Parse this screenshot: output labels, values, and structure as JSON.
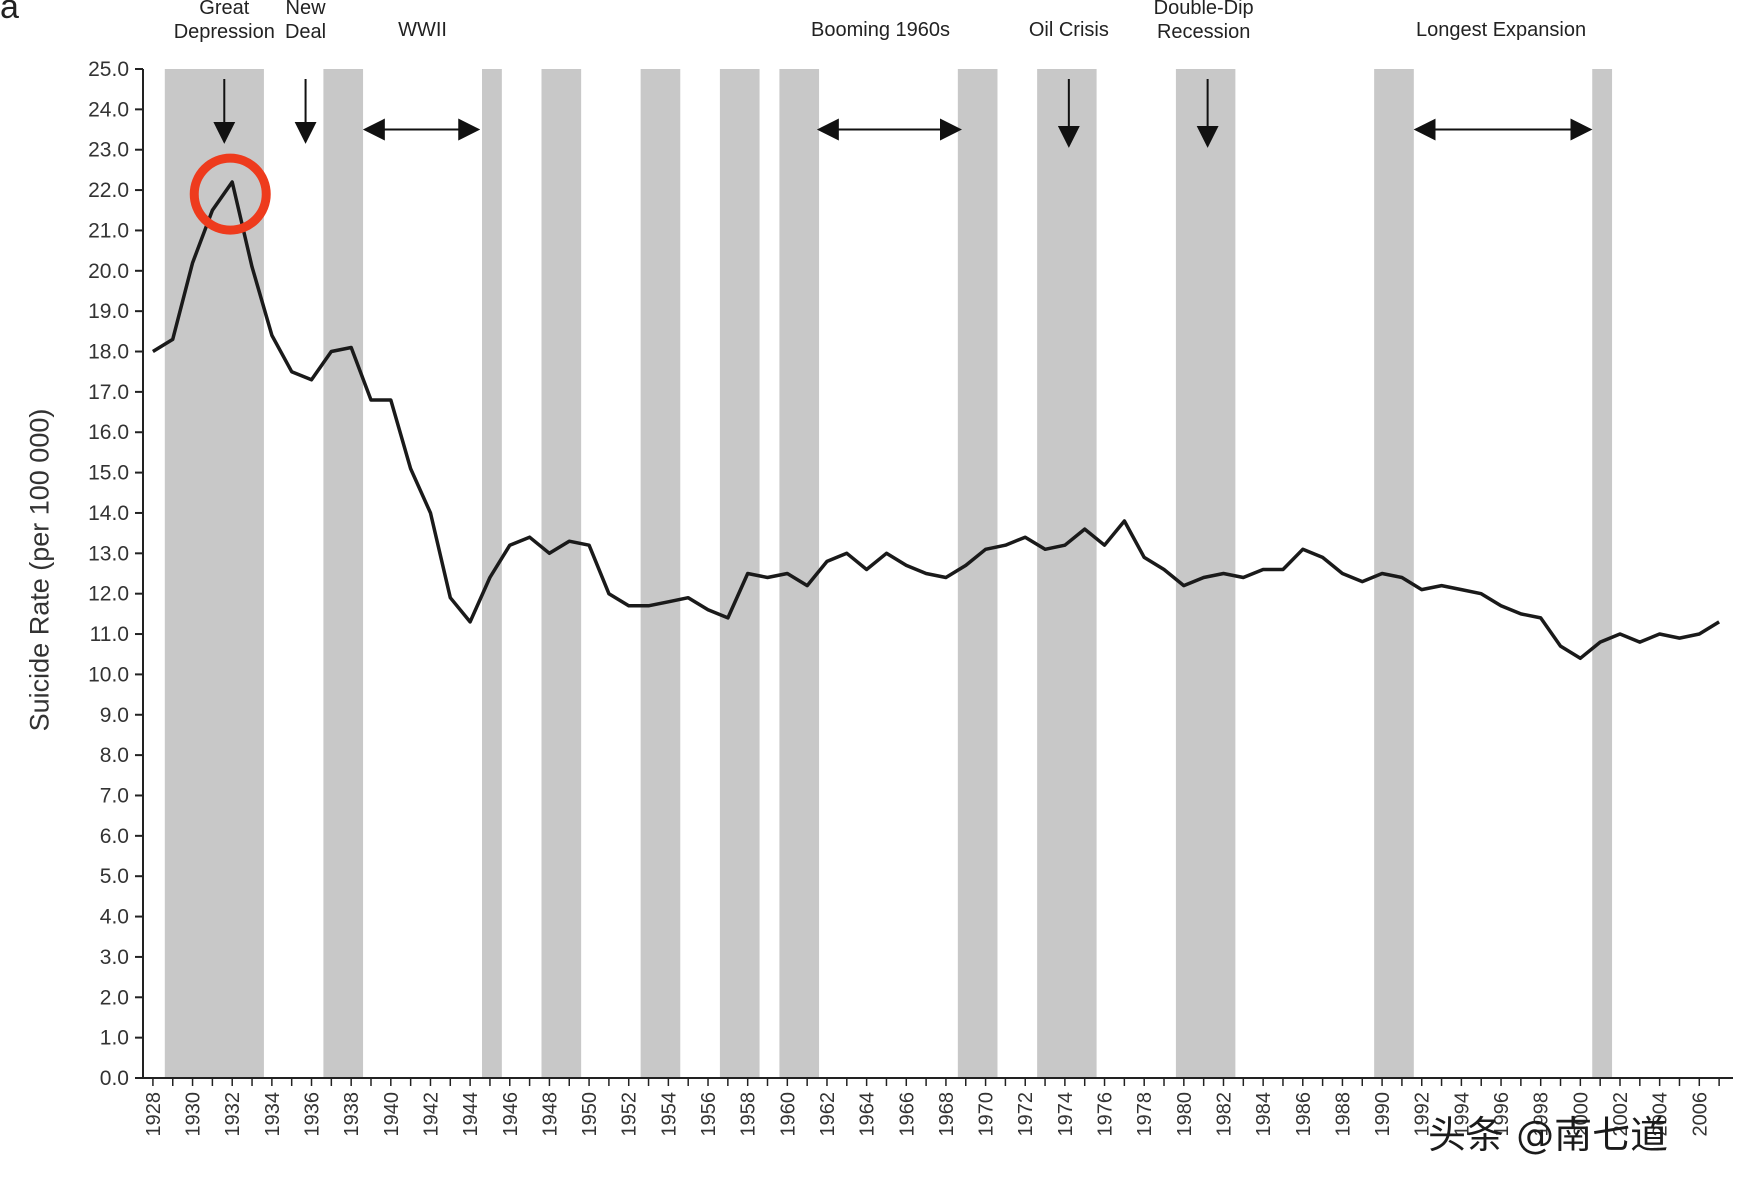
{
  "panel_label": "a",
  "watermark": "头条 @南七道",
  "highlight_color": "#ee3b1d",
  "annotations": [
    {
      "id": "great-depression",
      "lines": [
        "Great",
        "Depression"
      ],
      "year": 1931.6
    },
    {
      "id": "new-deal",
      "lines": [
        "New",
        "Deal"
      ],
      "year": 1935.7
    },
    {
      "id": "wwii",
      "lines": [
        "WWII"
      ],
      "year": 1941.6
    },
    {
      "id": "booming-1960s",
      "lines": [
        "Booming 1960s"
      ],
      "year": 1964.7
    },
    {
      "id": "oil-crisis",
      "lines": [
        "Oil Crisis"
      ],
      "year": 1974.2
    },
    {
      "id": "double-dip",
      "lines": [
        "Double-Dip",
        "Recession"
      ],
      "year": 1981.0
    },
    {
      "id": "longest-expansion",
      "lines": [
        "Longest Expansion"
      ],
      "year": 1996.0
    }
  ],
  "chart_data": {
    "type": "line",
    "ylabel": "Suicide Rate (per 100 000)",
    "xlabel": "",
    "ylim": [
      0,
      25
    ],
    "xlim": [
      1927.5,
      2007.7
    ],
    "y_tick_step": 1,
    "x_ticks": [
      1928,
      1930,
      1932,
      1934,
      1936,
      1938,
      1940,
      1942,
      1944,
      1946,
      1948,
      1950,
      1952,
      1954,
      1956,
      1958,
      1960,
      1962,
      1964,
      1966,
      1968,
      1970,
      1972,
      1974,
      1976,
      1978,
      1980,
      1982,
      1984,
      1986,
      1988,
      1990,
      1992,
      1994,
      1996,
      1998,
      2000,
      2002,
      2004,
      2006
    ],
    "line_color": "#1a1a1a",
    "band_color": "#c8c8c8",
    "recession_bands": [
      [
        1928.6,
        1933.6
      ],
      [
        1936.6,
        1938.6
      ],
      [
        1944.6,
        1945.6
      ],
      [
        1947.6,
        1949.6
      ],
      [
        1952.6,
        1954.6
      ],
      [
        1956.6,
        1958.6
      ],
      [
        1959.6,
        1961.6
      ],
      [
        1968.6,
        1970.6
      ],
      [
        1972.6,
        1975.6
      ],
      [
        1979.6,
        1982.6
      ],
      [
        1989.6,
        1991.6
      ],
      [
        2000.6,
        2001.6
      ]
    ],
    "arrows": [
      {
        "type": "down",
        "x": 1931.6,
        "y_from": 25.0,
        "y_to": 23.2
      },
      {
        "type": "down",
        "x": 1935.7,
        "y_from": 25.0,
        "y_to": 23.2
      },
      {
        "type": "down",
        "x": 1974.2,
        "y_from": 25.0,
        "y_to": 23.1
      },
      {
        "type": "down",
        "x": 1981.2,
        "y_from": 25.0,
        "y_to": 23.1
      },
      {
        "type": "double",
        "x1": 1938.7,
        "x2": 1944.4,
        "y": 23.5
      },
      {
        "type": "double",
        "x1": 1961.6,
        "x2": 1968.7,
        "y": 23.5
      },
      {
        "type": "double",
        "x1": 1991.7,
        "x2": 2000.5,
        "y": 23.5
      }
    ],
    "highlight": {
      "x": 1931.9,
      "y": 21.9
    },
    "series": [
      {
        "x": [
          1928,
          1929,
          1930,
          1931,
          1932,
          1933,
          1934,
          1935,
          1936,
          1937,
          1938,
          1939,
          1940,
          1941,
          1942,
          1943,
          1944,
          1945,
          1946,
          1947,
          1948,
          1949,
          1950,
          1951,
          1952,
          1953,
          1954,
          1955,
          1956,
          1957,
          1958,
          1959,
          1960,
          1961,
          1962,
          1963,
          1964,
          1965,
          1966,
          1967,
          1968,
          1969,
          1970,
          1971,
          1972,
          1973,
          1974,
          1975,
          1976,
          1977,
          1978,
          1979,
          1980,
          1981,
          1982,
          1983,
          1984,
          1985,
          1986,
          1987,
          1988,
          1989,
          1990,
          1991,
          1992,
          1993,
          1994,
          1995,
          1996,
          1997,
          1998,
          1999,
          2000,
          2001,
          2002,
          2003,
          2004,
          2005,
          2006,
          2007
        ],
        "values": [
          18.0,
          18.3,
          20.2,
          21.5,
          22.2,
          20.1,
          18.4,
          17.5,
          17.3,
          18.0,
          18.1,
          16.8,
          16.8,
          15.1,
          14.0,
          11.9,
          11.3,
          12.4,
          13.2,
          13.4,
          13.0,
          13.3,
          13.2,
          12.0,
          11.7,
          11.7,
          11.8,
          11.9,
          11.6,
          11.4,
          12.5,
          12.4,
          12.5,
          12.2,
          12.8,
          13.0,
          12.6,
          13.0,
          12.7,
          12.5,
          12.4,
          12.7,
          13.1,
          13.2,
          13.4,
          13.1,
          13.2,
          13.6,
          13.2,
          13.8,
          12.9,
          12.6,
          12.2,
          12.4,
          12.5,
          12.4,
          12.6,
          12.6,
          13.1,
          12.9,
          12.5,
          12.3,
          12.5,
          12.4,
          12.1,
          12.2,
          12.1,
          12.0,
          11.7,
          11.5,
          11.4,
          10.7,
          10.4,
          10.8,
          11.0,
          10.8,
          11.0,
          10.9,
          11.0,
          11.3
        ]
      }
    ]
  }
}
